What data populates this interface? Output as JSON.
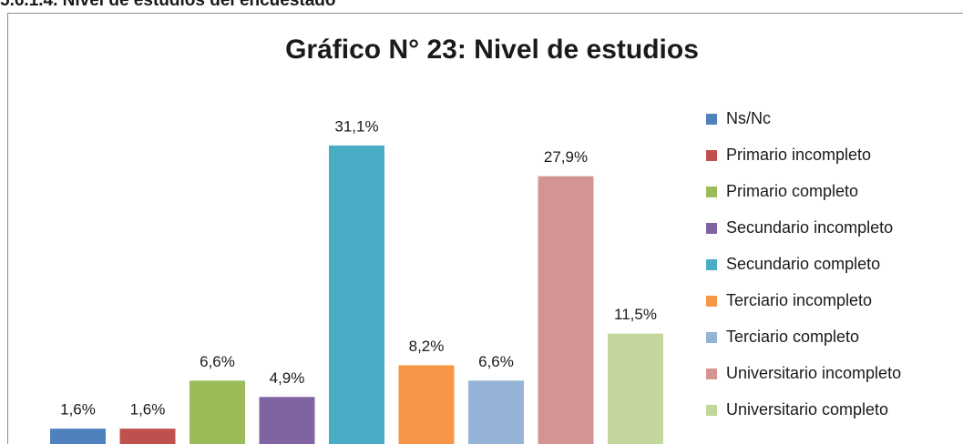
{
  "heading": "5.6.1.4. Nivel de estudios del encuestado",
  "chart_data": {
    "type": "bar",
    "title": "Gráfico N° 23: Nivel de estudios",
    "categories": [
      "Ns/Nc",
      "Primario incompleto",
      "Primario completo",
      "Secundario incompleto",
      "Secundario completo",
      "Terciario incompleto",
      "Terciario completo",
      "Universitario incompleto",
      "Universitario completo"
    ],
    "values": [
      1.6,
      1.6,
      6.6,
      4.9,
      31.1,
      8.2,
      6.6,
      27.9,
      11.5
    ],
    "value_labels": [
      "1,6%",
      "1,6%",
      "6,6%",
      "4,9%",
      "31,1%",
      "8,2%",
      "6,6%",
      "27,9%",
      "11,5%"
    ],
    "colors": [
      "#4f81bd",
      "#c0504d",
      "#9bbb59",
      "#8064a2",
      "#4bacc6",
      "#f79646",
      "#95b3d7",
      "#d49494",
      "#c3d69b"
    ],
    "legend": "right"
  }
}
